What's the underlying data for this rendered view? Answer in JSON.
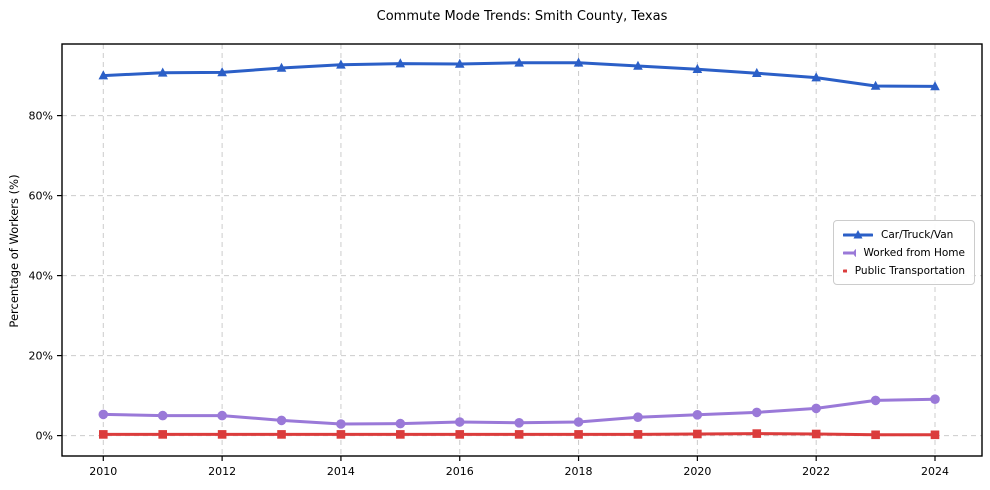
{
  "chart_data": {
    "type": "line",
    "title": "Commute Mode Trends: Smith County, Texas",
    "xlabel": "",
    "ylabel": "Percentage of Workers (%)",
    "x": [
      2010,
      2011,
      2012,
      2013,
      2014,
      2015,
      2016,
      2017,
      2018,
      2019,
      2020,
      2021,
      2022,
      2023,
      2024
    ],
    "xtick_labels": [
      "2010",
      "2012",
      "2014",
      "2016",
      "2018",
      "2020",
      "2022",
      "2024"
    ],
    "ytick_values": [
      0,
      20,
      40,
      60,
      80
    ],
    "ytick_labels": [
      "0%",
      "20%",
      "40%",
      "60%",
      "80%"
    ],
    "ylim": [
      -5.1,
      97.9
    ],
    "grid": true,
    "legend_position": "center right",
    "series": [
      {
        "name": "Car/Truck/Van",
        "marker": "triangle",
        "color": "#2b5fc7",
        "values": [
          90.0,
          90.7,
          90.8,
          91.9,
          92.7,
          93.0,
          92.9,
          93.2,
          93.2,
          92.4,
          91.6,
          90.6,
          89.5,
          87.4,
          87.3
        ]
      },
      {
        "name": "Worked from Home",
        "marker": "circle",
        "color": "#9a79d8",
        "values": [
          5.3,
          5.0,
          5.0,
          3.8,
          2.9,
          3.0,
          3.4,
          3.2,
          3.4,
          4.6,
          5.2,
          5.8,
          6.8,
          8.8,
          9.1
        ]
      },
      {
        "name": "Public Transportation",
        "marker": "square",
        "color": "#db3c3c",
        "values": [
          0.3,
          0.3,
          0.3,
          0.3,
          0.3,
          0.3,
          0.3,
          0.3,
          0.3,
          0.3,
          0.4,
          0.5,
          0.4,
          0.2,
          0.2
        ]
      }
    ],
    "colors": {
      "grid": "#cccccc",
      "axis": "#000000",
      "background": "#ffffff"
    }
  }
}
